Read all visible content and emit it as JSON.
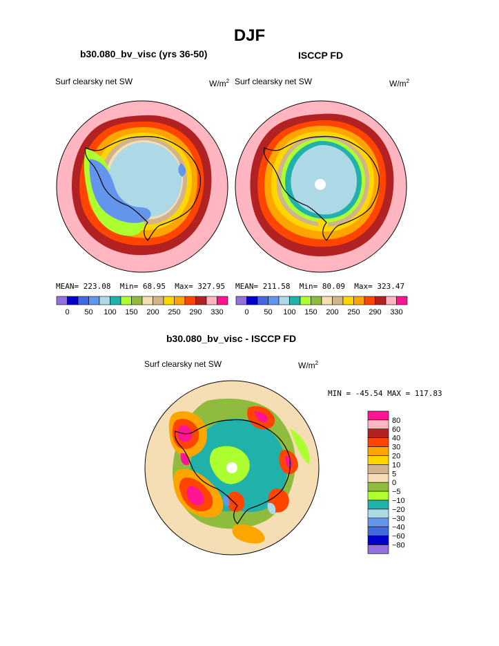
{
  "title": "DJF",
  "colors": {
    "p1": "#9370DB",
    "p2": "#0000CD",
    "p3": "#4169E1",
    "p4": "#6495ED",
    "p5": "#ADD8E6",
    "p6": "#20B2AA",
    "p7": "#ADFF2F",
    "p8": "#8FBC3F",
    "p9": "#F5DEB3",
    "p10": "#D2B48C",
    "p11": "#FFD700",
    "p12": "#FFA500",
    "p13": "#FF4500",
    "p14": "#B22222",
    "p15": "#FFB6C1",
    "p16": "#FF1493"
  },
  "chart_data": [
    {
      "type": "heatmap",
      "projection": "south-polar-stereographic",
      "title": "b30.080_bv_visc (yrs 36-50)",
      "variable": "Surf clearsky net SW",
      "units": "W/m",
      "units_sup": "2",
      "stats": {
        "mean": "223.08",
        "min": "68.95",
        "max": "327.95"
      },
      "stats_labels": {
        "mean": "MEAN=",
        "min": "Min=",
        "max": "Max="
      },
      "colorbar": {
        "orientation": "horizontal",
        "levels": [
          0,
          25,
          50,
          75,
          100,
          125,
          150,
          175,
          200,
          225,
          250,
          270,
          290,
          310,
          330
        ],
        "tick_labels": [
          "0",
          "50",
          "100",
          "150",
          "200",
          "250",
          "290",
          "330"
        ]
      }
    },
    {
      "type": "heatmap",
      "projection": "south-polar-stereographic",
      "title": "ISCCP FD",
      "variable": "Surf clearsky net SW",
      "units": "W/m",
      "units_sup": "2",
      "stats": {
        "mean": "211.58",
        "min": "80.09",
        "max": "323.47"
      },
      "stats_labels": {
        "mean": "MEAN=",
        "min": "Min=",
        "max": "Max="
      },
      "colorbar": {
        "orientation": "horizontal",
        "levels": [
          0,
          25,
          50,
          75,
          100,
          125,
          150,
          175,
          200,
          225,
          250,
          270,
          290,
          310,
          330
        ],
        "tick_labels": [
          "0",
          "50",
          "100",
          "150",
          "200",
          "250",
          "290",
          "330"
        ]
      }
    },
    {
      "type": "heatmap",
      "projection": "south-polar-stereographic",
      "title": "b30.080_bv_visc - ISCCP FD",
      "variable": "Surf clearsky net SW",
      "units": "W/m",
      "units_sup": "2",
      "stats_text": "MIN = -45.54 MAX = 117.83",
      "colorbar": {
        "orientation": "vertical",
        "levels": [
          80,
          60,
          40,
          30,
          20,
          10,
          5,
          0,
          -5,
          -10,
          -20,
          -30,
          -40,
          -60,
          -80
        ],
        "tick_labels": [
          "80",
          "60",
          "40",
          "30",
          "20",
          "10",
          "5",
          "0",
          "−5",
          "−10",
          "−20",
          "−30",
          "−40",
          "−60",
          "−80"
        ]
      }
    }
  ]
}
